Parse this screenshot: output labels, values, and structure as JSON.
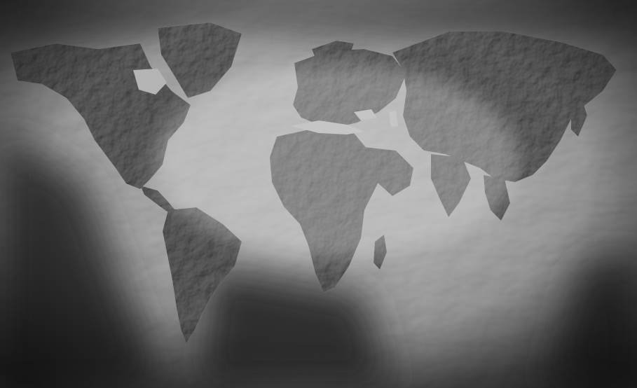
{
  "map": {
    "style": "grayscale shaded-relief world map with ocean-floor bathymetry",
    "colors": {
      "ocean_light": "#c9c9c9",
      "ocean_mid": "#9a9a9a",
      "ocean_dark": "#3c3c3c",
      "land": "#8e8e8e",
      "land_shadow": "#5e5e5e",
      "lake": "#b4b4b4",
      "vignette": "#1e1e1e"
    },
    "regions": [
      "north-america",
      "greenland",
      "south-america",
      "europe",
      "africa",
      "asia",
      "arabian-peninsula",
      "indian-subcontinent",
      "southeast-asia",
      "japan",
      "madagascar"
    ]
  }
}
